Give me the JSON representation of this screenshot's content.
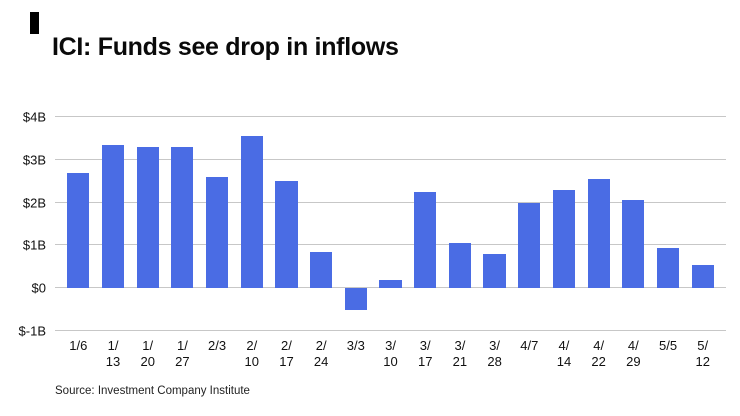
{
  "header": {
    "title": "ICI: Funds see drop in inflows"
  },
  "chart_data": {
    "type": "bar",
    "title": "ICI: Funds see drop in inflows",
    "categories": [
      "1/6",
      "1/\n13",
      "1/\n20",
      "1/\n27",
      "2/3",
      "2/\n10",
      "2/\n17",
      "2/\n24",
      "3/3",
      "3/\n10",
      "3/\n17",
      "3/\n21",
      "3/\n28",
      "4/7",
      "4/\n14",
      "4/\n22",
      "4/\n29",
      "5/5",
      "5/\n12"
    ],
    "values": [
      2.7,
      3.35,
      3.3,
      3.3,
      2.6,
      3.55,
      2.5,
      0.85,
      -0.5,
      0.2,
      2.25,
      1.05,
      0.8,
      2.0,
      2.3,
      2.55,
      2.05,
      0.95,
      0.55
    ],
    "xlabel": "",
    "ylabel": "",
    "ylim": [
      -1,
      4
    ],
    "yticks": [
      {
        "value": 4,
        "label": "$4B"
      },
      {
        "value": 3,
        "label": "$3B"
      },
      {
        "value": 2,
        "label": "$2B"
      },
      {
        "value": 1,
        "label": "$1B"
      },
      {
        "value": 0,
        "label": "$0"
      },
      {
        "value": -1,
        "label": "$-1B"
      }
    ],
    "grid": true,
    "legend": false,
    "bar_color": "#4a6ce4",
    "gridline_color": "#c7c7c7"
  },
  "footer": {
    "source": "Source: Investment Company Institute"
  }
}
